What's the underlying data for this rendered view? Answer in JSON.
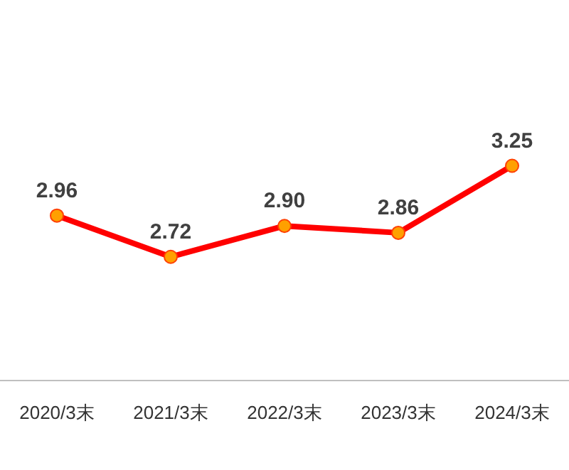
{
  "chart_data": {
    "type": "line",
    "categories": [
      "2020/3末",
      "2021/3末",
      "2022/3末",
      "2023/3末",
      "2024/3末"
    ],
    "series": [
      {
        "color": "#ff0000",
        "values": [
          2.96,
          2.72,
          2.9,
          2.86,
          3.25
        ],
        "value_labels": [
          "2.96",
          "2.72",
          "2.90",
          "2.86",
          "3.25"
        ]
      }
    ],
    "marker": "circle",
    "line_style": "solid"
  }
}
